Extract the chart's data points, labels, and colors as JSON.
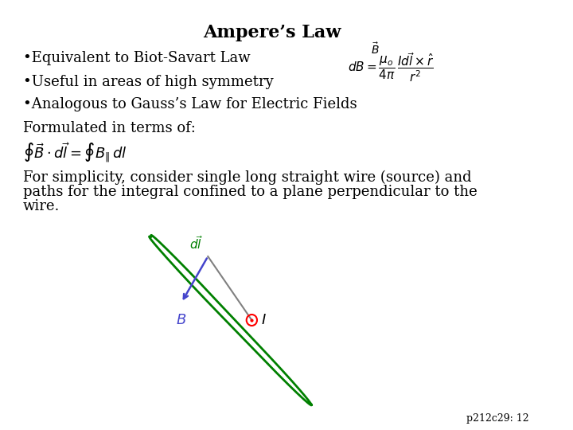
{
  "title": "Ampere’s Law",
  "bullet1": "•Equivalent to Biot-Savart Law",
  "bullet2": "•Useful in areas of high symmetry",
  "bullet3": "•Analogous to Gauss’s Law for Electric Fields",
  "formulated": "Formulated in terms of:",
  "simplicity": "For simplicity, consider single long straight wire (source) and\npaths for the integral confined to a plane perpendicular to the\nwire.",
  "footnote": "p212c29: 12",
  "bg_color": "#ffffff",
  "title_fontsize": 16,
  "body_fontsize": 13,
  "footnote_fontsize": 9
}
